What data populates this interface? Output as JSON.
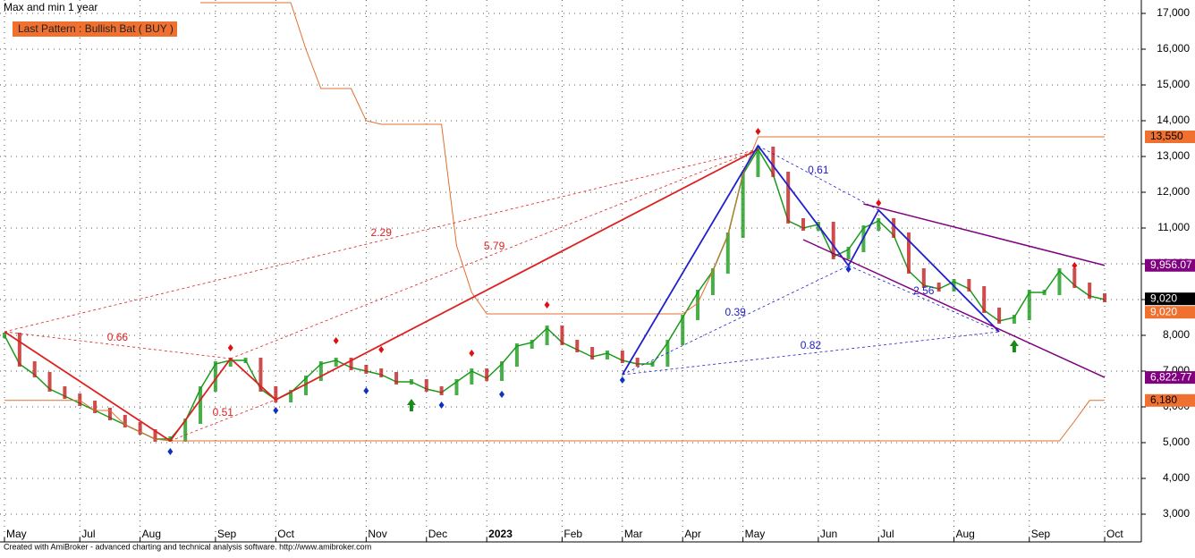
{
  "chart_data": {
    "type": "line",
    "title": "Max and min 1 year",
    "legend_text": "Last Pattern : Bullish Bat ( BUY )",
    "footer": "Created with AmiBroker - advanced charting and technical analysis software. http://www.amibroker.com",
    "categories": [
      "May",
      null,
      null,
      null,
      null,
      "Jul",
      null,
      null,
      null,
      "Aug",
      null,
      null,
      null,
      null,
      "Sep",
      null,
      null,
      null,
      "Oct",
      null,
      null,
      null,
      null,
      null,
      "Nov",
      null,
      null,
      null,
      "Dec",
      null,
      null,
      null,
      "2023",
      null,
      null,
      null,
      null,
      "Feb",
      null,
      null,
      null,
      "Mar",
      null,
      null,
      null,
      "Apr",
      null,
      null,
      null,
      "May",
      null,
      null,
      null,
      null,
      "Jun",
      null,
      null,
      null,
      "Jul",
      null,
      null,
      null,
      null,
      "Aug",
      null,
      null,
      null,
      null,
      "Sep",
      null,
      null,
      null,
      null,
      "Oct"
    ],
    "series": [
      {
        "name": "Close",
        "color": "#1a9a1a",
        "values": [
          8000,
          7200,
          6900,
          6500,
          6300,
          6100,
          5900,
          5700,
          5500,
          5300,
          5100,
          5100,
          5600,
          6500,
          7200,
          7300,
          7300,
          6500,
          6200,
          6400,
          6800,
          7200,
          7300,
          7100,
          7000,
          6900,
          6700,
          6700,
          6500,
          6400,
          6700,
          7000,
          6800,
          7200,
          7700,
          7800,
          8200,
          7800,
          7600,
          7400,
          7500,
          7300,
          7200,
          7200,
          7800,
          8500,
          9200,
          9800,
          10800,
          12500,
          13200,
          12500,
          11200,
          11000,
          11100,
          10200,
          10400,
          11000,
          11200,
          10800,
          9800,
          9400,
          9300,
          9500,
          9300,
          8700,
          8400,
          8500,
          9200,
          9200,
          9800,
          9400,
          9100,
          9000
        ]
      },
      {
        "name": "Max",
        "color": "#e07030",
        "values": [
          null,
          null,
          null,
          null,
          null,
          null,
          null,
          null,
          null,
          null,
          null,
          null,
          null,
          17300,
          17300,
          17300,
          17300,
          17300,
          17300,
          17300,
          16000,
          14900,
          14900,
          14900,
          14000,
          13900,
          13900,
          13900,
          13900,
          13900,
          10500,
          9200,
          8600,
          8600,
          8600,
          8600,
          8600,
          8600,
          8600,
          8600,
          8600,
          8600,
          8600,
          8600,
          8600,
          8600,
          8900,
          9800,
          10800,
          12500,
          13550,
          13550,
          13550,
          13550,
          13550,
          13550,
          13550,
          13550,
          13550,
          13550,
          13550,
          13550,
          13550,
          13550,
          13550,
          13550,
          13550,
          13550,
          13550,
          13550,
          13550,
          13550,
          13550,
          13550
        ]
      },
      {
        "name": "Min",
        "color": "#e07030",
        "values": [
          6180,
          6180,
          6180,
          6180,
          6180,
          6180,
          5900,
          5900,
          5500,
          5300,
          5100,
          5050,
          5050,
          5050,
          5050,
          5050,
          5050,
          5050,
          5050,
          5050,
          5050,
          5050,
          5050,
          5050,
          5050,
          5050,
          5050,
          5050,
          5050,
          5050,
          5050,
          5050,
          5050,
          5050,
          5050,
          5050,
          5050,
          5050,
          5050,
          5050,
          5050,
          5050,
          5050,
          5050,
          5050,
          5050,
          5050,
          5050,
          5050,
          5050,
          5050,
          5050,
          5050,
          5050,
          5050,
          5050,
          5050,
          5050,
          5050,
          5050,
          5050,
          5050,
          5050,
          5050,
          5050,
          5050,
          5050,
          5050,
          5050,
          5050,
          5050,
          5600,
          6180,
          6180
        ]
      }
    ],
    "patterns": [
      {
        "color": "#dd2020",
        "points": [
          [
            0,
            8100
          ],
          [
            11,
            5050
          ],
          [
            15,
            7350
          ],
          [
            18,
            6200
          ],
          [
            50,
            13200
          ]
        ],
        "ratios": [
          "0.66",
          "0.51",
          "2.29",
          "5.79"
        ]
      },
      {
        "color": "#2020cc",
        "points": [
          [
            41,
            6900
          ],
          [
            50,
            13300
          ],
          [
            56,
            9950
          ],
          [
            58,
            11500
          ],
          [
            66,
            8100
          ]
        ],
        "ratios": [
          "0.39",
          "0.61",
          "0.82",
          "2.56"
        ]
      }
    ],
    "trendlines": [
      {
        "color": "#800080",
        "points": [
          [
            57,
            11675
          ],
          [
            73,
            9956.07
          ]
        ]
      },
      {
        "color": "#800080",
        "points": [
          [
            53,
            10675
          ],
          [
            73,
            6822.77
          ]
        ]
      }
    ],
    "signals": {
      "sell": {
        "color": "#e01010",
        "points": [
          [
            15,
            7650
          ],
          [
            22,
            7850
          ],
          [
            25,
            7600
          ],
          [
            31,
            7500
          ],
          [
            36,
            8850
          ],
          [
            50,
            13700
          ],
          [
            58,
            11700
          ],
          [
            71,
            9950
          ]
        ]
      },
      "buy": {
        "color": "#1030c0",
        "points": [
          [
            11,
            4750
          ],
          [
            18,
            5900
          ],
          [
            24,
            6450
          ],
          [
            29,
            6050
          ],
          [
            33,
            6350
          ],
          [
            41,
            6750
          ],
          [
            56,
            9850
          ]
        ]
      },
      "arrow": {
        "color": "#1a8a1a",
        "points": [
          [
            27,
            6050
          ],
          [
            67,
            7700
          ]
        ]
      }
    },
    "price_labels": [
      {
        "value": 13550,
        "label": "13,550",
        "color": "#f07030",
        "text_color": "#000"
      },
      {
        "value": 9956.07,
        "label": "9,956.07",
        "color": "#800080",
        "text_color": "#fff"
      },
      {
        "value": 9020,
        "label": "9,020",
        "color": "#000000",
        "text_color": "#fff"
      },
      {
        "value": 9020,
        "label": "9,020",
        "color": "#f07030",
        "text_color": "#fff"
      },
      {
        "value": 6822.77,
        "label": "6,822.77",
        "color": "#800080",
        "text_color": "#fff"
      },
      {
        "value": 6180,
        "label": "6,180",
        "color": "#f07030",
        "text_color": "#000"
      }
    ],
    "ylim": [
      2625,
      17375
    ],
    "yticks": [
      {
        "value": 3000,
        "label": "3,000"
      },
      {
        "value": 4000,
        "label": "4,000"
      },
      {
        "value": 5000,
        "label": "5,000"
      },
      {
        "value": 6000,
        "label": "6,000"
      },
      {
        "value": 7000,
        "label": "7,000"
      },
      {
        "value": 8000,
        "label": "8,000"
      },
      {
        "value": 9000,
        "label": "9,000"
      },
      {
        "value": 10000,
        "label": "10,000"
      },
      {
        "value": 11000,
        "label": "11,000"
      },
      {
        "value": 12000,
        "label": "12,000"
      },
      {
        "value": 13000,
        "label": "13,000"
      },
      {
        "value": 14000,
        "label": "14,000"
      },
      {
        "value": 15000,
        "label": "15,000"
      },
      {
        "value": 16000,
        "label": "16,000"
      },
      {
        "value": 17000,
        "label": "17,000"
      }
    ],
    "grid": true
  }
}
